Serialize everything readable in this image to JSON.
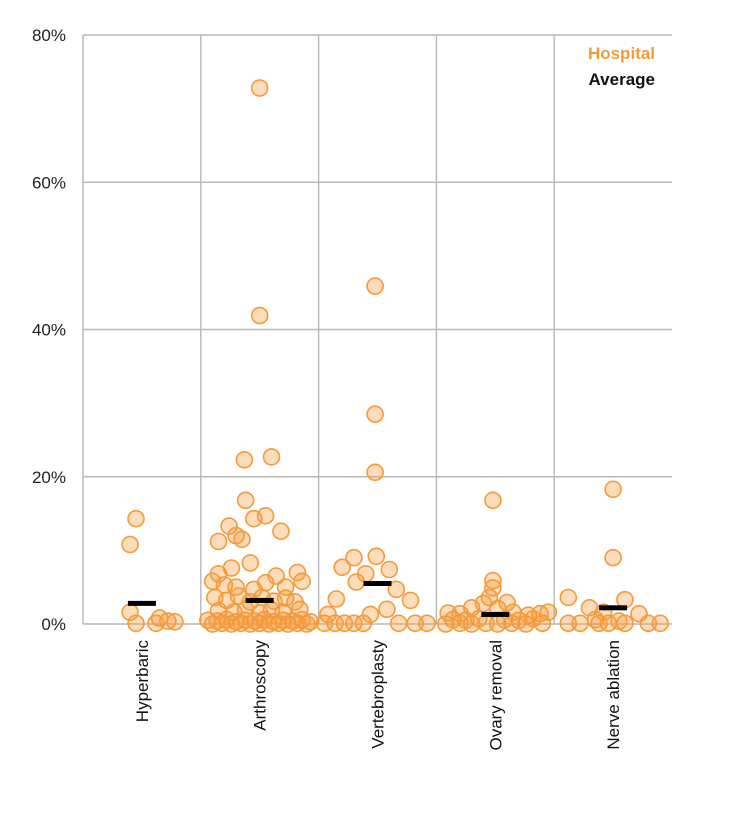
{
  "chart_data": {
    "type": "scatter",
    "title": "",
    "xlabel": "",
    "ylabel": "",
    "ylim": [
      0,
      80
    ],
    "y_ticks": [
      "0%",
      "20%",
      "40%",
      "60%",
      "80%"
    ],
    "y_tick_values": [
      0,
      20,
      40,
      60,
      80
    ],
    "grid": true,
    "legend_position": "top-right",
    "legend": {
      "hospital_label": "Hospital",
      "average_label": "Average"
    },
    "colors": {
      "hospital": "#f59a38",
      "average": "#000000",
      "grid": "#b8b8b8"
    },
    "categories": [
      "Hyperbaric",
      "Arthroscopy",
      "Vertebroplasty",
      "Ovary removal",
      "Nerve ablation"
    ],
    "series": [
      {
        "name": "Hospital",
        "points": [
          [
            {
              "x": 0.45,
              "y": 14.3
            },
            {
              "x": 0.4,
              "y": 10.8
            },
            {
              "x": 0.4,
              "y": 1.6
            },
            {
              "x": 0.45,
              "y": 0.1
            },
            {
              "x": 0.65,
              "y": 0.8
            },
            {
              "x": 0.72,
              "y": 0.4
            },
            {
              "x": 0.62,
              "y": 0.1
            },
            {
              "x": 0.78,
              "y": 0.3
            }
          ],
          [
            {
              "x": 0.5,
              "y": 72.8
            },
            {
              "x": 0.5,
              "y": 41.9
            },
            {
              "x": 0.37,
              "y": 22.3
            },
            {
              "x": 0.6,
              "y": 22.7
            },
            {
              "x": 0.38,
              "y": 16.8
            },
            {
              "x": 0.45,
              "y": 14.3
            },
            {
              "x": 0.55,
              "y": 14.7
            },
            {
              "x": 0.24,
              "y": 13.3
            },
            {
              "x": 0.3,
              "y": 12.0
            },
            {
              "x": 0.68,
              "y": 12.6
            },
            {
              "x": 0.15,
              "y": 11.2
            },
            {
              "x": 0.35,
              "y": 11.5
            },
            {
              "x": 0.15,
              "y": 6.8
            },
            {
              "x": 0.26,
              "y": 7.6
            },
            {
              "x": 0.42,
              "y": 8.3
            },
            {
              "x": 0.64,
              "y": 6.5
            },
            {
              "x": 0.82,
              "y": 7.0
            },
            {
              "x": 0.1,
              "y": 5.8
            },
            {
              "x": 0.2,
              "y": 5.3
            },
            {
              "x": 0.3,
              "y": 5.0
            },
            {
              "x": 0.45,
              "y": 4.7
            },
            {
              "x": 0.55,
              "y": 5.6
            },
            {
              "x": 0.72,
              "y": 5.0
            },
            {
              "x": 0.86,
              "y": 5.8
            },
            {
              "x": 0.12,
              "y": 3.6
            },
            {
              "x": 0.22,
              "y": 3.2
            },
            {
              "x": 0.32,
              "y": 3.8
            },
            {
              "x": 0.42,
              "y": 3.0
            },
            {
              "x": 0.52,
              "y": 3.6
            },
            {
              "x": 0.62,
              "y": 3.1
            },
            {
              "x": 0.72,
              "y": 3.5
            },
            {
              "x": 0.8,
              "y": 3.0
            },
            {
              "x": 0.15,
              "y": 1.8
            },
            {
              "x": 0.28,
              "y": 1.6
            },
            {
              "x": 0.38,
              "y": 2.0
            },
            {
              "x": 0.5,
              "y": 1.5
            },
            {
              "x": 0.6,
              "y": 1.9
            },
            {
              "x": 0.7,
              "y": 1.6
            },
            {
              "x": 0.84,
              "y": 2.0
            },
            {
              "x": 0.06,
              "y": 0.5
            },
            {
              "x": 0.14,
              "y": 0.4
            },
            {
              "x": 0.22,
              "y": 0.6
            },
            {
              "x": 0.3,
              "y": 0.3
            },
            {
              "x": 0.38,
              "y": 0.5
            },
            {
              "x": 0.46,
              "y": 0.4
            },
            {
              "x": 0.54,
              "y": 0.6
            },
            {
              "x": 0.62,
              "y": 0.3
            },
            {
              "x": 0.7,
              "y": 0.5
            },
            {
              "x": 0.78,
              "y": 0.4
            },
            {
              "x": 0.86,
              "y": 0.6
            },
            {
              "x": 0.93,
              "y": 0.3
            },
            {
              "x": 0.1,
              "y": 0.0
            },
            {
              "x": 0.18,
              "y": 0.1
            },
            {
              "x": 0.26,
              "y": 0.0
            },
            {
              "x": 0.34,
              "y": 0.1
            },
            {
              "x": 0.42,
              "y": 0.0
            },
            {
              "x": 0.5,
              "y": 0.1
            },
            {
              "x": 0.58,
              "y": 0.0
            },
            {
              "x": 0.66,
              "y": 0.1
            },
            {
              "x": 0.74,
              "y": 0.0
            },
            {
              "x": 0.82,
              "y": 0.1
            },
            {
              "x": 0.9,
              "y": 0.0
            }
          ],
          [
            {
              "x": 0.48,
              "y": 45.9
            },
            {
              "x": 0.48,
              "y": 28.5
            },
            {
              "x": 0.48,
              "y": 20.6
            },
            {
              "x": 0.3,
              "y": 9.0
            },
            {
              "x": 0.49,
              "y": 9.2
            },
            {
              "x": 0.2,
              "y": 7.7
            },
            {
              "x": 0.4,
              "y": 6.8
            },
            {
              "x": 0.6,
              "y": 7.4
            },
            {
              "x": 0.32,
              "y": 5.7
            },
            {
              "x": 0.66,
              "y": 4.7
            },
            {
              "x": 0.15,
              "y": 3.4
            },
            {
              "x": 0.78,
              "y": 3.2
            },
            {
              "x": 0.58,
              "y": 2.0
            },
            {
              "x": 0.08,
              "y": 1.3
            },
            {
              "x": 0.44,
              "y": 1.3
            },
            {
              "x": 0.05,
              "y": 0.1
            },
            {
              "x": 0.14,
              "y": 0.1
            },
            {
              "x": 0.22,
              "y": 0.1
            },
            {
              "x": 0.3,
              "y": 0.1
            },
            {
              "x": 0.38,
              "y": 0.1
            },
            {
              "x": 0.68,
              "y": 0.1
            },
            {
              "x": 0.82,
              "y": 0.1
            },
            {
              "x": 0.92,
              "y": 0.1
            }
          ],
          [
            {
              "x": 0.48,
              "y": 16.8
            },
            {
              "x": 0.48,
              "y": 5.9
            },
            {
              "x": 0.48,
              "y": 4.9
            },
            {
              "x": 0.45,
              "y": 3.6
            },
            {
              "x": 0.4,
              "y": 2.8
            },
            {
              "x": 0.6,
              "y": 2.9
            },
            {
              "x": 0.3,
              "y": 2.2
            },
            {
              "x": 0.52,
              "y": 2.1
            },
            {
              "x": 0.1,
              "y": 1.5
            },
            {
              "x": 0.2,
              "y": 1.4
            },
            {
              "x": 0.65,
              "y": 1.6
            },
            {
              "x": 0.78,
              "y": 1.2
            },
            {
              "x": 0.88,
              "y": 1.4
            },
            {
              "x": 0.95,
              "y": 1.6
            },
            {
              "x": 0.14,
              "y": 0.6
            },
            {
              "x": 0.25,
              "y": 0.5
            },
            {
              "x": 0.36,
              "y": 0.7
            },
            {
              "x": 0.58,
              "y": 0.6
            },
            {
              "x": 0.7,
              "y": 0.5
            },
            {
              "x": 0.82,
              "y": 0.7
            },
            {
              "x": 0.08,
              "y": 0.0
            },
            {
              "x": 0.2,
              "y": 0.1
            },
            {
              "x": 0.3,
              "y": 0.0
            },
            {
              "x": 0.42,
              "y": 0.1
            },
            {
              "x": 0.52,
              "y": 0.0
            },
            {
              "x": 0.64,
              "y": 0.1
            },
            {
              "x": 0.76,
              "y": 0.0
            },
            {
              "x": 0.9,
              "y": 0.1
            }
          ],
          [
            {
              "x": 0.5,
              "y": 18.3
            },
            {
              "x": 0.5,
              "y": 9.0
            },
            {
              "x": 0.12,
              "y": 3.6
            },
            {
              "x": 0.6,
              "y": 3.3
            },
            {
              "x": 0.3,
              "y": 2.2
            },
            {
              "x": 0.42,
              "y": 1.6
            },
            {
              "x": 0.72,
              "y": 1.4
            },
            {
              "x": 0.35,
              "y": 0.6
            },
            {
              "x": 0.55,
              "y": 0.4
            },
            {
              "x": 0.12,
              "y": 0.1
            },
            {
              "x": 0.22,
              "y": 0.1
            },
            {
              "x": 0.38,
              "y": 0.1
            },
            {
              "x": 0.46,
              "y": 0.1
            },
            {
              "x": 0.6,
              "y": 0.1
            },
            {
              "x": 0.8,
              "y": 0.1
            },
            {
              "x": 0.9,
              "y": 0.1
            }
          ]
        ]
      },
      {
        "name": "Average",
        "values": [
          2.8,
          3.2,
          5.5,
          1.3,
          2.2
        ]
      }
    ]
  }
}
